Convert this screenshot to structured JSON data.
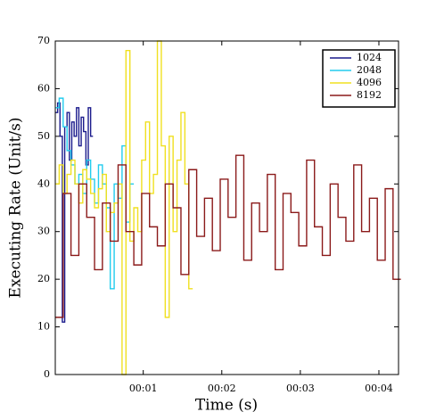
{
  "chart_data": {
    "type": "step",
    "xlabel": "Time (s)",
    "ylabel": "Executing Rate (Unit/s)",
    "xlim": [
      -0.12,
      4.25
    ],
    "ylim": [
      0,
      70
    ],
    "xticks": [
      {
        "value": 1,
        "label": "00:01"
      },
      {
        "value": 2,
        "label": "00:02"
      },
      {
        "value": 3,
        "label": "00:03"
      },
      {
        "value": 4,
        "label": "00:04"
      }
    ],
    "yticks": [
      0,
      10,
      20,
      30,
      40,
      50,
      60,
      70
    ],
    "legend": "upper right",
    "series": [
      {
        "name": "1024",
        "color": "#1a1a8c",
        "x": [
          -0.12,
          -0.09,
          -0.06,
          -0.03,
          0,
          0.03,
          0.06,
          0.09,
          0.12,
          0.15,
          0.18,
          0.21,
          0.24,
          0.27,
          0.3,
          0.33
        ],
        "values": [
          55,
          57,
          50,
          11,
          52,
          55,
          45,
          53,
          50,
          56,
          48,
          54,
          51,
          44,
          56,
          50
        ]
      },
      {
        "name": "2048",
        "color": "#22ccee",
        "x": [
          -0.12,
          -0.07,
          -0.02,
          0.03,
          0.08,
          0.13,
          0.18,
          0.23,
          0.28,
          0.33,
          0.38,
          0.43,
          0.48,
          0.53,
          0.58,
          0.63,
          0.68,
          0.73,
          0.78,
          0.83
        ],
        "values": [
          56,
          58,
          52,
          47,
          44,
          40,
          42,
          38,
          45,
          41,
          36,
          44,
          40,
          35,
          18,
          40,
          37,
          48,
          32,
          40
        ]
      },
      {
        "name": "4096",
        "color": "#f0e020",
        "x": [
          -0.12,
          -0.07,
          -0.02,
          0.03,
          0.08,
          0.13,
          0.18,
          0.23,
          0.28,
          0.33,
          0.38,
          0.43,
          0.48,
          0.53,
          0.58,
          0.63,
          0.68,
          0.73,
          0.78,
          0.83,
          0.88,
          0.93,
          0.98,
          1.03,
          1.08,
          1.13,
          1.18,
          1.23,
          1.28,
          1.33,
          1.38,
          1.43,
          1.48,
          1.53,
          1.58
        ],
        "values": [
          40,
          44,
          38,
          42,
          45,
          40,
          36,
          43,
          41,
          38,
          35,
          39,
          42,
          30,
          34,
          36,
          40,
          0,
          68,
          28,
          35,
          30,
          45,
          53,
          38,
          42,
          70,
          48,
          12,
          50,
          30,
          45,
          55,
          40,
          18
        ]
      },
      {
        "name": "8192",
        "color": "#8b1a1a",
        "x": [
          -0.12,
          -0.02,
          0.08,
          0.18,
          0.28,
          0.38,
          0.48,
          0.58,
          0.68,
          0.78,
          0.88,
          0.98,
          1.08,
          1.18,
          1.28,
          1.38,
          1.48,
          1.58,
          1.68,
          1.78,
          1.88,
          1.98,
          2.08,
          2.18,
          2.28,
          2.38,
          2.48,
          2.58,
          2.68,
          2.78,
          2.88,
          2.98,
          3.08,
          3.18,
          3.28,
          3.38,
          3.48,
          3.58,
          3.68,
          3.78,
          3.88,
          3.98,
          4.08,
          4.18
        ],
        "values": [
          12,
          38,
          25,
          40,
          33,
          22,
          36,
          28,
          44,
          30,
          23,
          38,
          31,
          27,
          40,
          35,
          21,
          43,
          29,
          37,
          26,
          41,
          33,
          46,
          24,
          36,
          30,
          42,
          22,
          38,
          34,
          27,
          45,
          31,
          25,
          40,
          33,
          28,
          44,
          30,
          37,
          24,
          39,
          20
        ]
      }
    ]
  }
}
